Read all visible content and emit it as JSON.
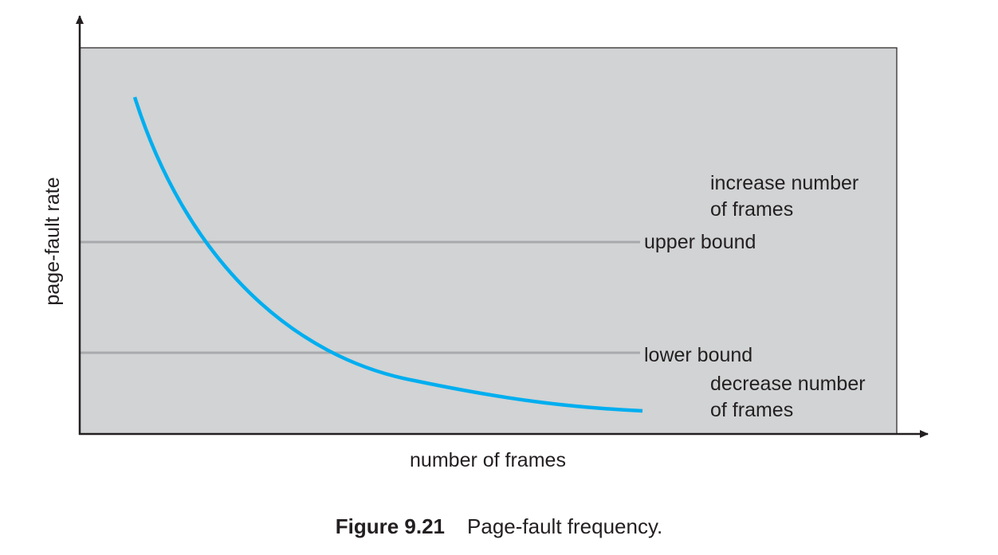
{
  "figure": {
    "number": "Figure 9.21",
    "title": "Page-fault frequency."
  },
  "axes": {
    "xlabel": "number of frames",
    "ylabel": "page-fault rate"
  },
  "bounds": {
    "upper_label": "upper bound",
    "lower_label": "lower bound"
  },
  "regions": {
    "above_line1": "increase number",
    "above_line2": "of frames",
    "below_line1": "decrease number",
    "below_line2": "of frames"
  },
  "colors": {
    "plot_background": "#d1d3d4",
    "curve": "#00aeef",
    "bound_lines": "#a7a9ac",
    "axes": "#231f20"
  }
}
